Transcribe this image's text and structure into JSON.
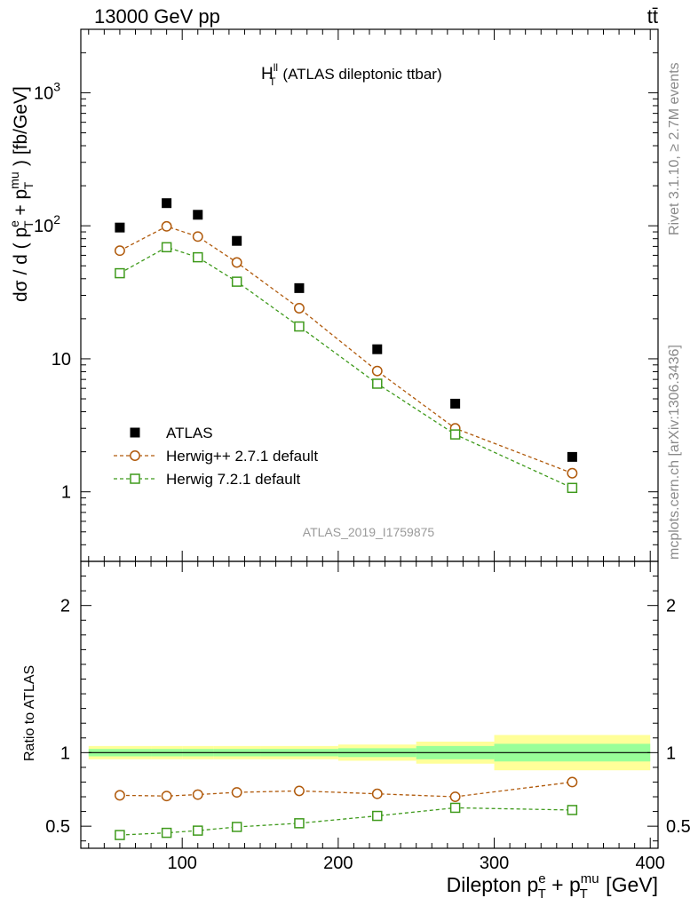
{
  "header": {
    "left": "13000 GeV pp",
    "right": "tt̄"
  },
  "side": {
    "rivet": "Rivet 3.1.10, ≥ 2.7M events",
    "mcplots": "mcplots.cern.ch [arXiv:1306.3436]"
  },
  "chart_data": [
    {
      "type": "scatter",
      "title_main": "H",
      "title_sup": "ll",
      "title_sub": "T",
      "title_rest": "(ATLAS dileptonic ttbar)",
      "ylabel": "dσ / d ( p + p ) [fb/GeV]",
      "ylabel_parts": [
        "dσ / d ( p",
        "e",
        "T",
        " + p",
        "mu",
        "T",
        " ) [fb/GeV]"
      ],
      "yscale": "log",
      "ylim": [
        0.3,
        3000
      ],
      "xlim": [
        35,
        405
      ],
      "y_ticks": [
        {
          "value": 1,
          "label": "1"
        },
        {
          "value": 10,
          "label": "10"
        },
        {
          "value": 100,
          "label": "10",
          "sup": "2"
        },
        {
          "value": 1000,
          "label": "10",
          "sup": "3"
        }
      ],
      "watermark": "ATLAS_2019_I1759875",
      "legend_position": "bottom-left",
      "legend": [
        "ATLAS",
        "Herwig++ 2.7.1 default",
        "Herwig 7.2.1 default"
      ],
      "series": [
        {
          "name": "ATLAS",
          "marker": "filled-square",
          "color": "#000000",
          "x": [
            60,
            90,
            110,
            135,
            175,
            225,
            275,
            350
          ],
          "y": [
            97,
            148,
            121,
            77,
            34,
            11.8,
            4.6,
            1.83
          ]
        },
        {
          "name": "Herwig++ 2.7.1 default",
          "marker": "open-circle",
          "color": "#b05a0c",
          "x": [
            60,
            90,
            110,
            135,
            175,
            225,
            275,
            350
          ],
          "y": [
            65,
            99,
            83,
            53,
            24,
            8.1,
            3.0,
            1.38
          ]
        },
        {
          "name": "Herwig 7.2.1 default",
          "marker": "open-square",
          "color": "#3f9a1c",
          "x": [
            60,
            90,
            110,
            135,
            175,
            225,
            275,
            350
          ],
          "y": [
            44,
            69,
            58,
            38,
            17.5,
            6.5,
            2.7,
            1.07
          ]
        }
      ]
    },
    {
      "type": "line",
      "ylabel": "Ratio to ATLAS",
      "xlabel_parts": [
        "Dilepton p",
        "e",
        "T",
        " + p",
        "mu",
        "T",
        " [GeV]"
      ],
      "xlim": [
        35,
        405
      ],
      "ylim": [
        0.35,
        2.3
      ],
      "x_ticks": [
        100,
        200,
        300,
        400
      ],
      "y_ticks": [
        0.5,
        1,
        2
      ],
      "bands": [
        {
          "x": [
            40,
            80
          ],
          "yellow": [
            0.955,
            1.045
          ],
          "green": [
            0.975,
            1.025
          ]
        },
        {
          "x": [
            80,
            100
          ],
          "yellow": [
            0.955,
            1.045
          ],
          "green": [
            0.975,
            1.025
          ]
        },
        {
          "x": [
            100,
            120
          ],
          "yellow": [
            0.955,
            1.045
          ],
          "green": [
            0.975,
            1.025
          ]
        },
        {
          "x": [
            120,
            150
          ],
          "yellow": [
            0.955,
            1.045
          ],
          "green": [
            0.975,
            1.025
          ]
        },
        {
          "x": [
            150,
            200
          ],
          "yellow": [
            0.955,
            1.045
          ],
          "green": [
            0.975,
            1.025
          ]
        },
        {
          "x": [
            200,
            250
          ],
          "yellow": [
            0.945,
            1.055
          ],
          "green": [
            0.97,
            1.03
          ]
        },
        {
          "x": [
            250,
            300
          ],
          "yellow": [
            0.925,
            1.075
          ],
          "green": [
            0.955,
            1.045
          ]
        },
        {
          "x": [
            300,
            400
          ],
          "yellow": [
            0.88,
            1.12
          ],
          "green": [
            0.94,
            1.06
          ]
        }
      ],
      "series": [
        {
          "name": "Herwig++ 2.7.1 default",
          "marker": "open-circle",
          "color": "#b05a0c",
          "x": [
            60,
            90,
            110,
            135,
            175,
            225,
            275,
            350
          ],
          "y": [
            0.71,
            0.705,
            0.715,
            0.73,
            0.74,
            0.72,
            0.7,
            0.8
          ],
          "err": [
            0.01,
            0.01,
            0.01,
            0.01,
            0.01,
            0.01,
            0.02,
            0.025
          ]
        },
        {
          "name": "Herwig 7.2.1 default",
          "marker": "open-square",
          "color": "#3f9a1c",
          "x": [
            60,
            90,
            110,
            135,
            175,
            225,
            275,
            350
          ],
          "y": [
            0.44,
            0.455,
            0.47,
            0.495,
            0.52,
            0.57,
            0.625,
            0.61
          ],
          "err": [
            0.008,
            0.008,
            0.008,
            0.01,
            0.01,
            0.01,
            0.015,
            0.02
          ]
        }
      ]
    }
  ]
}
